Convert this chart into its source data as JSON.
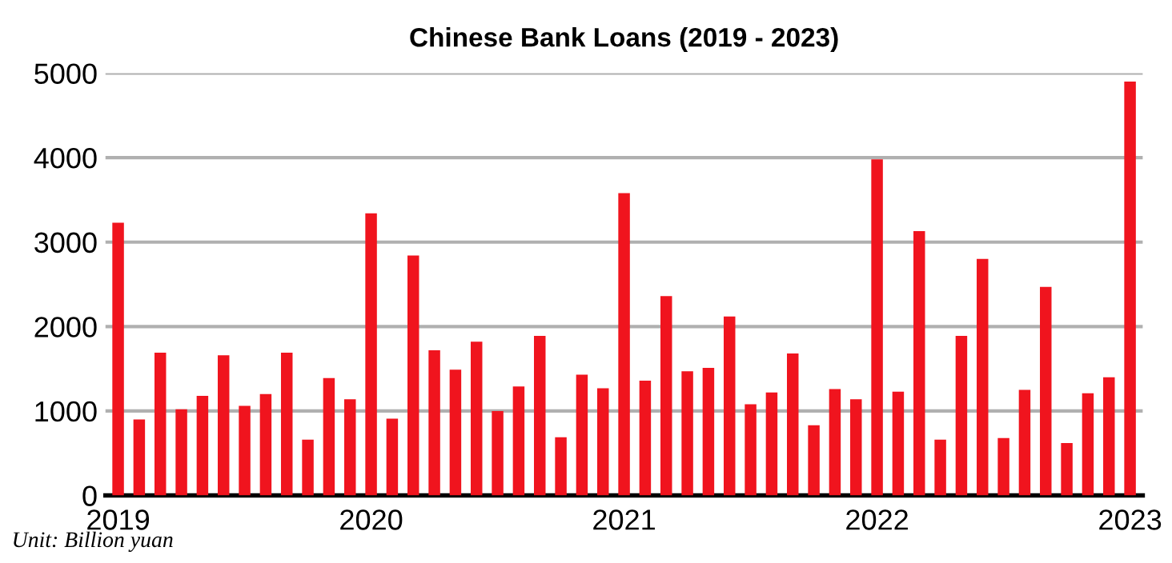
{
  "chart_data": {
    "type": "bar",
    "title": "Chinese Bank Loans (2019 - 2023)",
    "categories": [
      "2019",
      null,
      null,
      null,
      null,
      null,
      null,
      null,
      null,
      null,
      null,
      null,
      "2020",
      null,
      null,
      null,
      null,
      null,
      null,
      null,
      null,
      null,
      null,
      null,
      "2021",
      null,
      null,
      null,
      null,
      null,
      null,
      null,
      null,
      null,
      null,
      null,
      "2022",
      null,
      null,
      null,
      null,
      null,
      null,
      null,
      null,
      null,
      null,
      null,
      "2023"
    ],
    "values": [
      3230,
      900,
      1690,
      1020,
      1180,
      1660,
      1060,
      1200,
      1690,
      660,
      1390,
      1140,
      3340,
      910,
      2840,
      1720,
      1490,
      1820,
      1000,
      1290,
      1890,
      690,
      1430,
      1270,
      3580,
      1360,
      2360,
      1470,
      1510,
      2120,
      1080,
      1220,
      1680,
      830,
      1260,
      1140,
      3980,
      1230,
      3130,
      660,
      1890,
      2800,
      680,
      1250,
      2470,
      620,
      1210,
      1400,
      4900
    ],
    "color": "#f0141e",
    "ylim": [
      0,
      5000
    ],
    "yticks": [
      0,
      1000,
      2000,
      3000,
      4000,
      5000
    ],
    "grid": "y",
    "annotations": [
      "Unit: Billion yuan"
    ]
  }
}
